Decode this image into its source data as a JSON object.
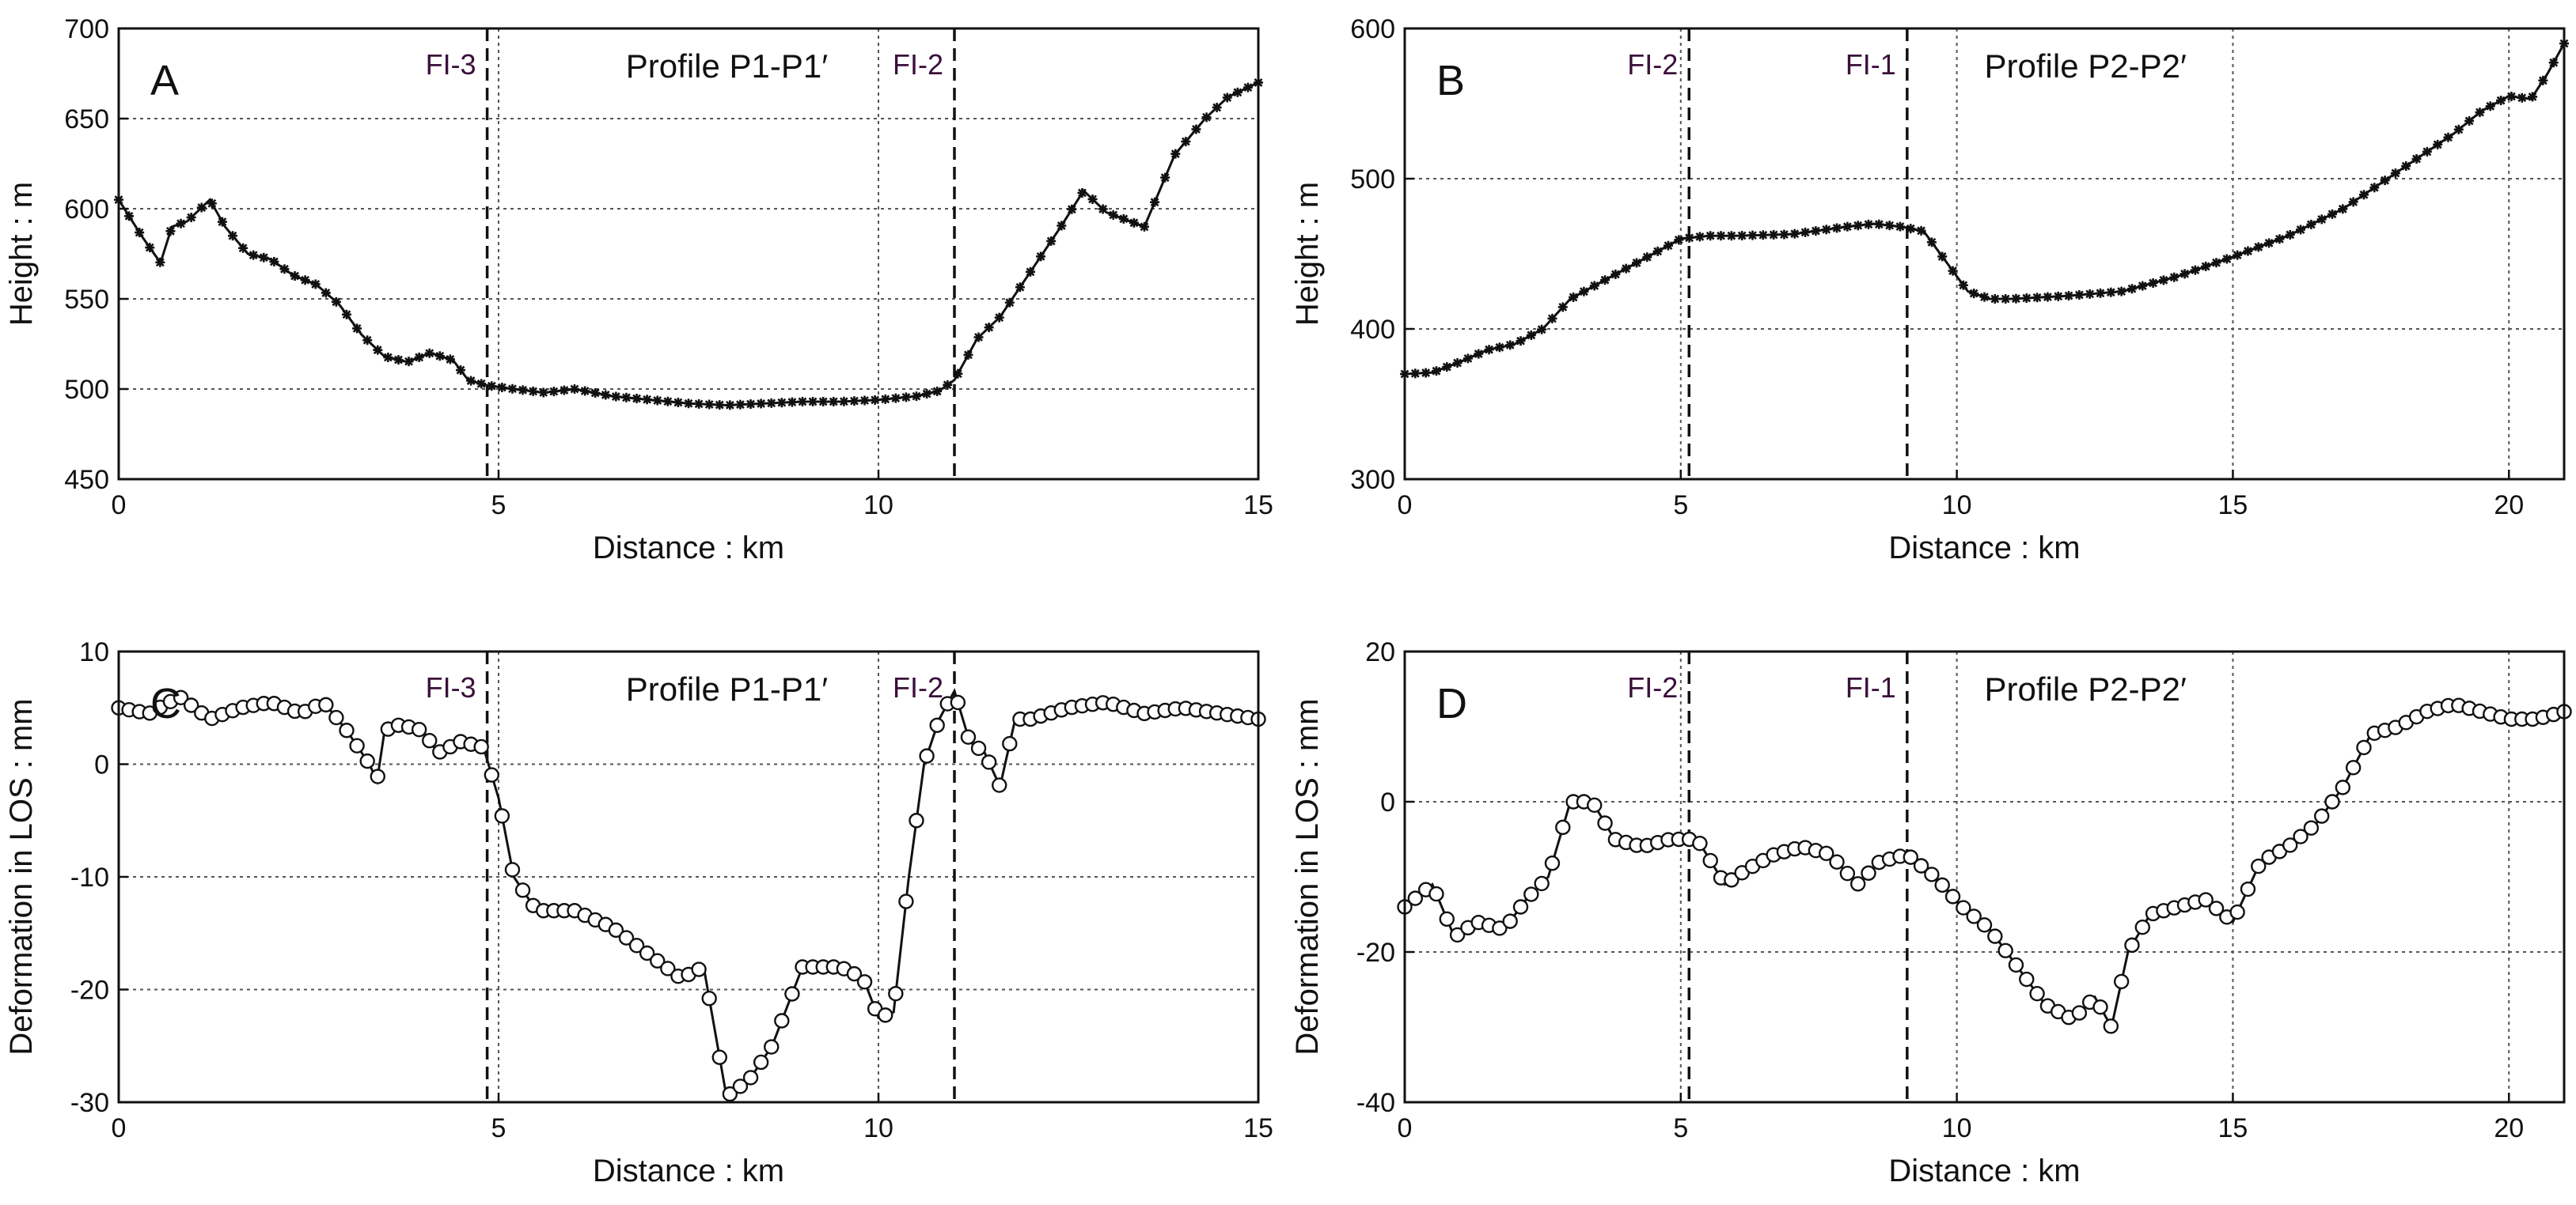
{
  "chart_data": [
    {
      "type": "line",
      "panel": "A",
      "profile_label": "Profile P1-P1′",
      "xlabel": "Distance : km",
      "ylabel": "Height : m",
      "xlim": [
        0,
        15
      ],
      "ylim": [
        450,
        700
      ],
      "xticks": [
        0,
        5,
        10,
        15
      ],
      "yticks": [
        450,
        500,
        550,
        600,
        650,
        700
      ],
      "grid_x": [
        5,
        10
      ],
      "grid_y": [
        500,
        550,
        600,
        650
      ],
      "marker": "star",
      "faults": [
        {
          "name": "FI-3",
          "x": 4.85,
          "label_side": "left"
        },
        {
          "name": "FI-2",
          "x": 11.0,
          "label_side": "left"
        }
      ],
      "series": [
        {
          "name": "Height",
          "x": [
            0,
            0.3,
            0.55,
            0.7,
            0.9,
            1.2,
            1.4,
            1.7,
            2.0,
            2.3,
            2.6,
            2.9,
            3.2,
            3.5,
            3.8,
            4.1,
            4.4,
            4.6,
            4.85,
            5.2,
            5.6,
            6.0,
            6.5,
            7.0,
            7.5,
            8.0,
            8.5,
            9.0,
            9.5,
            10.0,
            10.5,
            10.8,
            11.0,
            11.3,
            11.6,
            12.0,
            12.4,
            12.7,
            13.0,
            13.5,
            13.9,
            14.3,
            14.6,
            15.0
          ],
          "y": [
            605,
            585,
            570,
            590,
            593,
            605,
            590,
            575,
            572,
            563,
            558,
            547,
            530,
            518,
            515,
            520,
            516,
            505,
            502,
            500,
            498,
            500,
            496,
            494,
            492,
            491,
            492,
            493,
            493,
            494,
            496,
            499,
            505,
            528,
            540,
            565,
            590,
            610,
            598,
            590,
            630,
            650,
            662,
            670
          ]
        }
      ]
    },
    {
      "type": "line",
      "panel": "B",
      "profile_label": "Profile P2-P2′",
      "xlabel": "Distance : km",
      "ylabel": "Height : m",
      "xlim": [
        0,
        21
      ],
      "ylim": [
        300,
        600
      ],
      "xticks": [
        0,
        5,
        10,
        15,
        20
      ],
      "yticks": [
        300,
        400,
        500,
        600
      ],
      "grid_x": [
        5,
        10,
        15,
        20
      ],
      "grid_y": [
        400,
        500
      ],
      "marker": "star",
      "faults": [
        {
          "name": "FI-2",
          "x": 5.15,
          "label_side": "left"
        },
        {
          "name": "FI-1",
          "x": 9.1,
          "label_side": "left"
        }
      ],
      "series": [
        {
          "name": "Height",
          "x": [
            0,
            0.5,
            1.0,
            1.5,
            2.0,
            2.5,
            3.0,
            3.5,
            4.0,
            4.5,
            5.0,
            5.5,
            6.0,
            7.0,
            8.0,
            8.5,
            9.0,
            9.4,
            9.8,
            10.2,
            10.6,
            11.0,
            12.0,
            13.0,
            14.0,
            15.0,
            16.0,
            17.0,
            18.0,
            19.0,
            19.5,
            20.0,
            20.4,
            20.7,
            21.0
          ],
          "y": [
            370,
            371,
            378,
            386,
            390,
            400,
            420,
            430,
            440,
            450,
            460,
            462,
            462,
            463,
            468,
            470,
            468,
            465,
            445,
            425,
            420,
            420,
            422,
            425,
            435,
            448,
            462,
            480,
            505,
            530,
            545,
            555,
            553,
            570,
            590
          ]
        }
      ]
    },
    {
      "type": "line",
      "panel": "C",
      "profile_label": "Profile P1-P1′",
      "xlabel": "Distance : km",
      "ylabel": "Deformation in LOS : mm",
      "xlim": [
        0,
        15
      ],
      "ylim": [
        -30,
        10
      ],
      "xticks": [
        0,
        5,
        10,
        15
      ],
      "yticks": [
        -30,
        -20,
        -10,
        0,
        10
      ],
      "grid_x": [
        5,
        10
      ],
      "grid_y": [
        -20,
        -10,
        0
      ],
      "marker": "circle",
      "faults": [
        {
          "name": "FI-3",
          "x": 4.85,
          "label_side": "left"
        },
        {
          "name": "FI-2",
          "x": 11.0,
          "label_side": "left"
        }
      ],
      "series": [
        {
          "name": "Deformation",
          "x": [
            0,
            0.4,
            0.8,
            1.2,
            1.6,
            2.0,
            2.4,
            2.7,
            3.0,
            3.3,
            3.4,
            3.5,
            3.7,
            4.0,
            4.2,
            4.5,
            4.8,
            5.0,
            5.2,
            5.5,
            6.0,
            6.5,
            7.0,
            7.4,
            7.7,
            8.0,
            8.3,
            8.6,
            9.0,
            9.5,
            9.8,
            10.0,
            10.2,
            10.4,
            10.6,
            10.8,
            11.0,
            11.2,
            11.4,
            11.6,
            11.8,
            12.0,
            12.5,
            13.0,
            13.5,
            14.0,
            14.5,
            15.0
          ],
          "y": [
            5,
            4.5,
            6,
            4,
            5,
            5.5,
            4.5,
            5.5,
            3,
            0,
            -1.5,
            3,
            3.5,
            3,
            1,
            2,
            1.5,
            -3,
            -10,
            -13,
            -13,
            -14.5,
            -17,
            -19,
            -18,
            -29.5,
            -28,
            -25,
            -18,
            -18,
            -19,
            -22.5,
            -22,
            -10,
            0,
            4,
            6.5,
            2,
            1,
            -2,
            4,
            4,
            5,
            5.5,
            4.5,
            5,
            4.5,
            4
          ]
        }
      ]
    },
    {
      "type": "line",
      "panel": "D",
      "profile_label": "Profile P2-P2′",
      "xlabel": "Distance : km",
      "ylabel": "Deformation in LOS : mm",
      "xlim": [
        0,
        21
      ],
      "ylim": [
        -40,
        20
      ],
      "xticks": [
        0,
        5,
        10,
        15,
        20
      ],
      "yticks": [
        -40,
        -20,
        0,
        20
      ],
      "grid_x": [
        5,
        10,
        15,
        20
      ],
      "grid_y": [
        -20,
        0
      ],
      "marker": "circle",
      "faults": [
        {
          "name": "FI-2",
          "x": 5.15,
          "label_side": "left"
        },
        {
          "name": "FI-1",
          "x": 9.1,
          "label_side": "left"
        }
      ],
      "series": [
        {
          "name": "Deformation",
          "x": [
            0,
            0.5,
            0.9,
            1.3,
            1.8,
            2.2,
            2.6,
            3.0,
            3.4,
            3.8,
            4.3,
            4.8,
            5.3,
            5.8,
            6.2,
            6.7,
            7.2,
            7.7,
            8.2,
            8.6,
            9.1,
            9.6,
            10.1,
            10.6,
            11.1,
            11.6,
            12.1,
            12.5,
            12.8,
            13.1,
            13.5,
            14.0,
            14.5,
            15.0,
            15.5,
            16.0,
            16.5,
            17.0,
            17.5,
            18.0,
            18.5,
            19.0,
            19.5,
            20.0,
            20.5,
            21.0
          ],
          "y": [
            -14,
            -11,
            -18,
            -16,
            -17,
            -13,
            -10,
            0,
            0,
            -5,
            -6,
            -5,
            -5,
            -11,
            -9,
            -7,
            -6,
            -7,
            -11,
            -8,
            -7,
            -10,
            -14,
            -17,
            -22,
            -27,
            -29,
            -26,
            -30,
            -20,
            -15,
            -14,
            -13,
            -16,
            -8,
            -6,
            -3,
            2,
            9,
            10,
            12,
            13,
            12,
            11,
            11,
            12
          ]
        }
      ]
    }
  ]
}
